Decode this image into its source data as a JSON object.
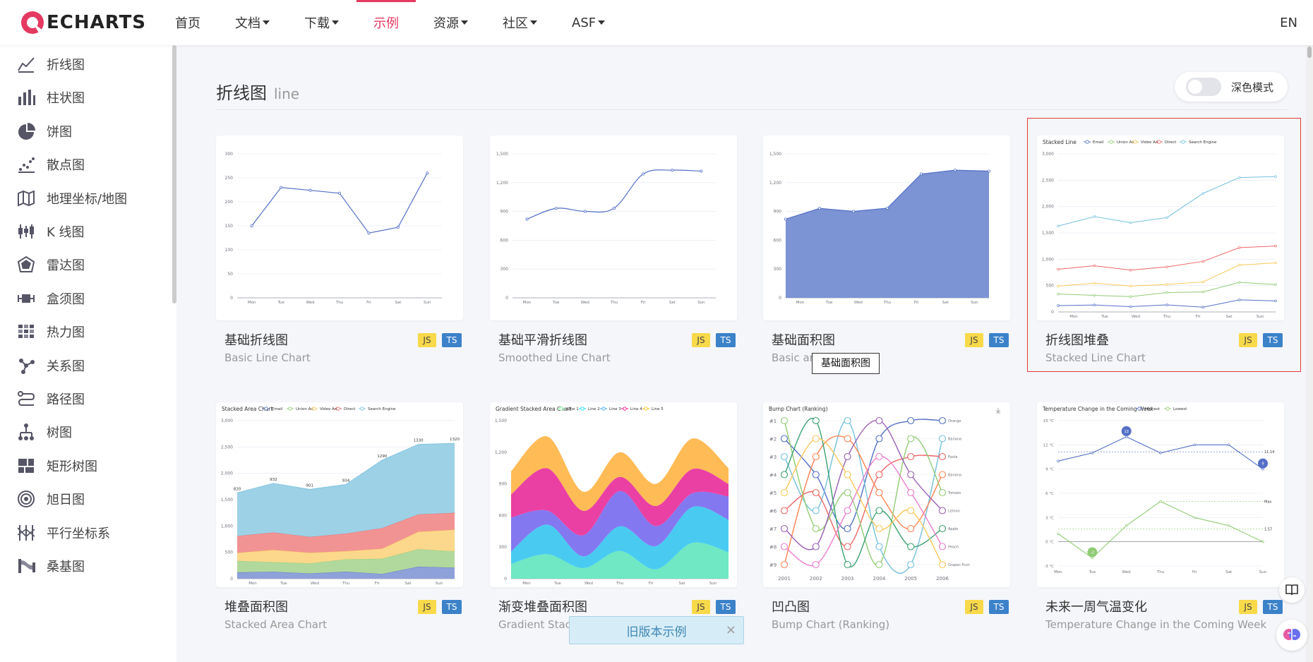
{
  "header": {
    "logo_text": "ECHARTS",
    "nav": [
      {
        "label": "首页",
        "dropdown": false,
        "active": false
      },
      {
        "label": "文档",
        "dropdown": true,
        "active": false
      },
      {
        "label": "下载",
        "dropdown": true,
        "active": false
      },
      {
        "label": "示例",
        "dropdown": false,
        "active": true
      },
      {
        "label": "资源",
        "dropdown": true,
        "active": false
      },
      {
        "label": "社区",
        "dropdown": true,
        "active": false
      },
      {
        "label": "ASF",
        "dropdown": true,
        "active": false
      }
    ],
    "lang": "EN"
  },
  "sidebar": {
    "items": [
      {
        "label": "折线图",
        "icon": "line-chart-icon"
      },
      {
        "label": "柱状图",
        "icon": "bar-chart-icon"
      },
      {
        "label": "饼图",
        "icon": "pie-chart-icon"
      },
      {
        "label": "散点图",
        "icon": "scatter-chart-icon"
      },
      {
        "label": "地理坐标/地图",
        "icon": "map-icon"
      },
      {
        "label": "K 线图",
        "icon": "candlestick-icon"
      },
      {
        "label": "雷达图",
        "icon": "radar-icon"
      },
      {
        "label": "盒须图",
        "icon": "boxplot-icon"
      },
      {
        "label": "热力图",
        "icon": "heatmap-icon"
      },
      {
        "label": "关系图",
        "icon": "graph-icon"
      },
      {
        "label": "路径图",
        "icon": "lines-icon"
      },
      {
        "label": "树图",
        "icon": "tree-icon"
      },
      {
        "label": "矩形树图",
        "icon": "treemap-icon"
      },
      {
        "label": "旭日图",
        "icon": "sunburst-icon"
      },
      {
        "label": "平行坐标系",
        "icon": "parallel-icon"
      },
      {
        "label": "桑基图",
        "icon": "sankey-icon"
      }
    ]
  },
  "main": {
    "title": "折线图",
    "subtitle": "line",
    "dark_mode_label": "深色模式",
    "cards": [
      {
        "title": "基础折线图",
        "subtitle": "Basic Line Chart"
      },
      {
        "title": "基础平滑折线图",
        "subtitle": "Smoothed Line Chart"
      },
      {
        "title": "基础面积图",
        "subtitle": "Basic area"
      },
      {
        "title": "折线图堆叠",
        "subtitle": "Stacked Line Chart"
      },
      {
        "title": "堆叠面积图",
        "subtitle": "Stacked Area Chart"
      },
      {
        "title": "渐变堆叠面积图",
        "subtitle": "Gradient Stacked Area Chart"
      },
      {
        "title": "凹凸图",
        "subtitle": "Bump Chart (Ranking)"
      },
      {
        "title": "未来一周气温变化",
        "subtitle": "Temperature Change in the Coming Week"
      }
    ],
    "badge_js": "JS",
    "badge_ts": "TS",
    "tooltip": "基础面积图",
    "old_version_banner": "旧版本示例",
    "close_glyph": "×"
  },
  "thumbnails": {
    "days": [
      "Mon",
      "Tue",
      "Wed",
      "Thu",
      "Fri",
      "Sat",
      "Sun"
    ],
    "basic_line": {
      "yticks": [
        "0",
        "50",
        "100",
        "150",
        "200",
        "250",
        "300"
      ],
      "values": [
        150,
        230,
        224,
        218,
        135,
        147,
        260
      ]
    },
    "smoothed": {
      "yticks": [
        "0",
        "300",
        "600",
        "900",
        "1,200",
        "1,500"
      ],
      "values": [
        820,
        932,
        901,
        934,
        1290,
        1330,
        1320
      ]
    },
    "area": {
      "yticks": [
        "0",
        "300",
        "600",
        "900",
        "1,200",
        "1,500"
      ],
      "values": [
        820,
        932,
        901,
        934,
        1290,
        1330,
        1320
      ]
    },
    "stacked_line": {
      "title": "Stacked Line",
      "legend": [
        "Email",
        "Union Ads",
        "Video Ads",
        "Direct",
        "Search Engine"
      ],
      "yticks": [
        "0",
        "500",
        "1,000",
        "1,500",
        "2,000",
        "2,500",
        "3,000"
      ]
    },
    "stacked_area": {
      "title": "Stacked Area Chart",
      "legend": [
        "Email",
        "Union Ads",
        "Video Ads",
        "Direct",
        "Search Engine"
      ],
      "yticks": [
        "0",
        "500",
        "1,000",
        "1,500",
        "2,000",
        "2,500",
        "3,000"
      ],
      "labels": [
        "820",
        "932",
        "901",
        "934",
        "1290",
        "1330",
        "1320"
      ]
    },
    "gradient": {
      "title": "Gradient Stacked Area Chart",
      "legend": [
        "Line 1",
        "Line 2",
        "Line 3",
        "Line 4",
        "Line 5"
      ],
      "yticks": [
        "0",
        "300",
        "600",
        "900",
        "1,200",
        "1,500"
      ]
    },
    "bump": {
      "title": "Bump Chart (Ranking)",
      "ranks": [
        "#1",
        "#2",
        "#3",
        "#4",
        "#5",
        "#6",
        "#7",
        "#8",
        "#9"
      ],
      "years": [
        "2001",
        "2002",
        "2003",
        "2004",
        "2005",
        "2006"
      ],
      "fruits": [
        "Orange",
        "Banana",
        "Pasta",
        "Banana",
        "Tomato",
        "Lemon",
        "Apple",
        "Peach",
        "Grapes Fruit"
      ]
    },
    "temperature": {
      "title": "Temperature Change in the Coming Week",
      "legend": [
        "Highest",
        "Lowest"
      ],
      "yticks": [
        "-3 °C",
        "0 °C",
        "3 °C",
        "6 °C",
        "9 °C",
        "12 °C",
        "15 °C"
      ],
      "high": [
        10,
        11,
        13,
        11,
        12,
        12,
        9
      ],
      "low": [
        1,
        -2,
        2,
        5,
        3,
        2,
        0
      ],
      "marks": [
        "13",
        "9",
        "-2"
      ],
      "markline_labels": [
        "11.14",
        "Max",
        "1.57"
      ]
    }
  }
}
